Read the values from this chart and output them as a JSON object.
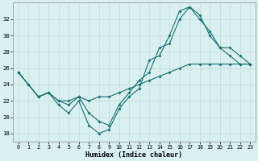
{
  "xlabel": "Humidex (Indice chaleur)",
  "bg_color": "#d8f0f0",
  "line_color": "#1a7070",
  "ylim": [
    17,
    34
  ],
  "xlim": [
    -0.5,
    23.5
  ],
  "yticks": [
    18,
    20,
    22,
    24,
    26,
    28,
    30,
    32
  ],
  "xticks": [
    0,
    1,
    2,
    3,
    4,
    5,
    6,
    7,
    8,
    9,
    10,
    11,
    12,
    13,
    14,
    15,
    16,
    17,
    18,
    19,
    20,
    21,
    22,
    23
  ],
  "series1_x": [
    0,
    1,
    2,
    3,
    4,
    5,
    6,
    7,
    8,
    9,
    10,
    11,
    12,
    13,
    14,
    15,
    16,
    17,
    18,
    19,
    20,
    21,
    22,
    23
  ],
  "series1_y": [
    25.5,
    24.0,
    22.5,
    23.0,
    21.5,
    20.5,
    22.0,
    19.0,
    18.0,
    18.5,
    21.0,
    22.5,
    23.5,
    27.0,
    27.5,
    30.0,
    33.0,
    33.5,
    32.5,
    30.0,
    28.5,
    27.5,
    26.5,
    26.5
  ],
  "series2_x": [
    0,
    2,
    3,
    4,
    5,
    6,
    7,
    8,
    9,
    10,
    11,
    12,
    13,
    14,
    15,
    16,
    17,
    18,
    19,
    20,
    21,
    22,
    23
  ],
  "series2_y": [
    25.5,
    22.5,
    23.0,
    22.0,
    21.5,
    22.5,
    20.5,
    19.5,
    19.0,
    21.5,
    23.0,
    24.5,
    25.5,
    28.5,
    29.0,
    32.0,
    33.5,
    32.0,
    30.5,
    28.5,
    28.5,
    27.5,
    26.5
  ],
  "series3_x": [
    0,
    1,
    2,
    3,
    4,
    5,
    6,
    7,
    8,
    9,
    10,
    11,
    12,
    13,
    14,
    15,
    16,
    17,
    18,
    19,
    20,
    21,
    22,
    23
  ],
  "series3_y": [
    25.5,
    24.0,
    22.5,
    23.0,
    22.0,
    22.0,
    22.5,
    22.0,
    22.5,
    22.5,
    23.0,
    23.5,
    24.0,
    24.5,
    25.0,
    25.5,
    26.0,
    26.5,
    26.5,
    26.5,
    26.5,
    26.5,
    26.5,
    26.5
  ]
}
